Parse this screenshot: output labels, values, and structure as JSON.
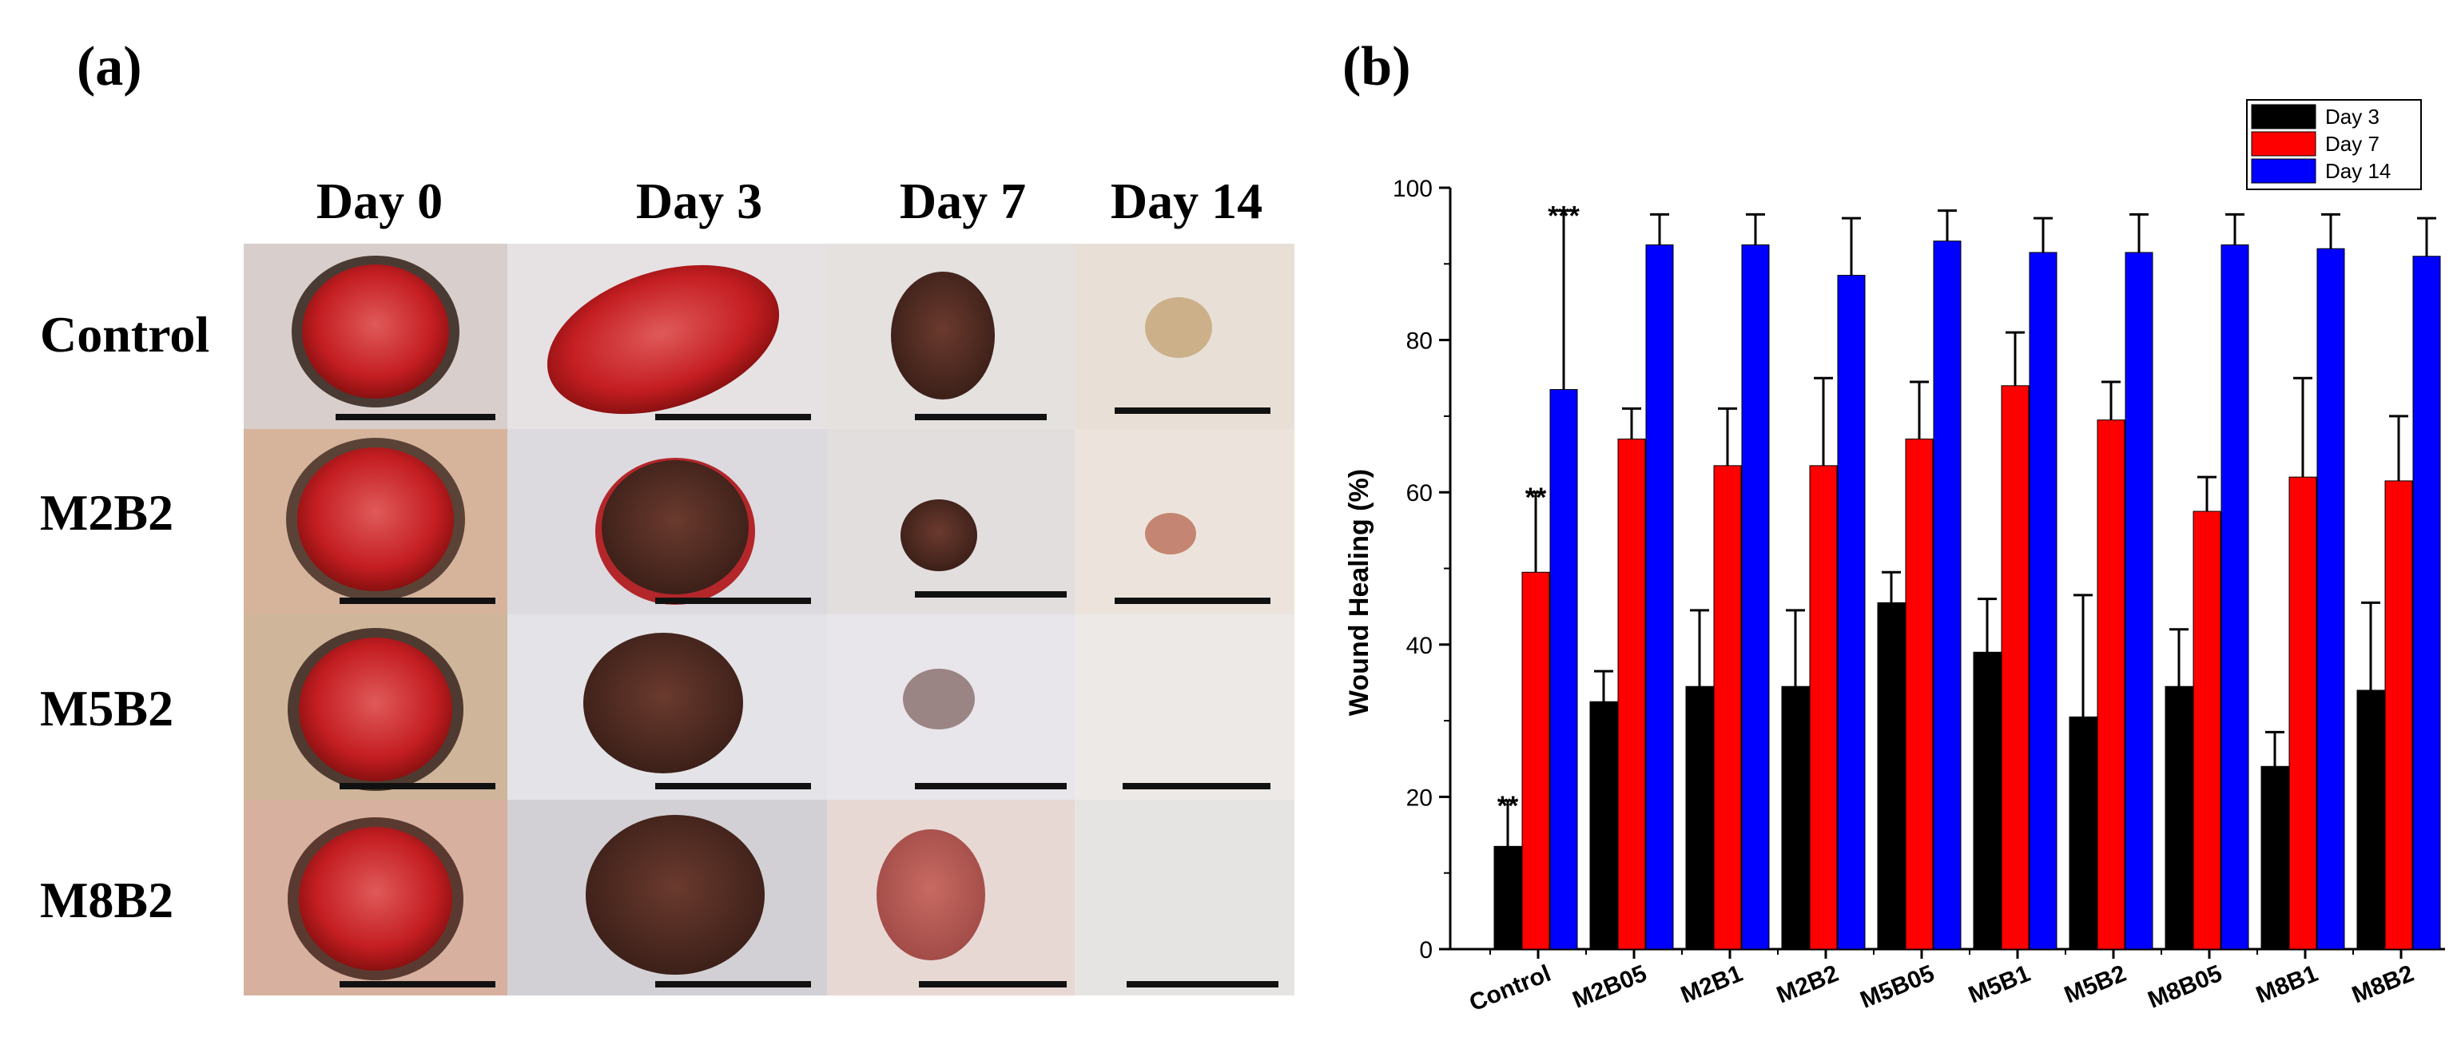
{
  "panel_a": {
    "label": "(a)",
    "columns": [
      "Day 0",
      "Day 3",
      "Day 7",
      "Day 14"
    ],
    "rows": [
      "Control",
      "M2B2",
      "M5B2",
      "M8B2"
    ]
  },
  "panel_b": {
    "label": "(b)"
  },
  "colors": {
    "day3": "#000000",
    "day7": "#ff0000",
    "day14": "#0000ff"
  },
  "chart_data": {
    "type": "bar",
    "title": "",
    "xlabel": "",
    "ylabel": "Wound Healing (%)",
    "ylim": [
      0,
      100
    ],
    "yticks": [
      0,
      20,
      40,
      60,
      80,
      100
    ],
    "legend_position": "top-right",
    "categories": [
      "Control",
      "M2B05",
      "M2B1",
      "M2B2",
      "M5B05",
      "M5B1",
      "M5B2",
      "M8B05",
      "M8B1",
      "M8B2"
    ],
    "series": [
      {
        "name": "Day 3",
        "values": [
          13.5,
          32.5,
          34.5,
          34.5,
          45.5,
          39,
          30.5,
          34.5,
          24,
          34
        ],
        "errors": [
          6,
          4,
          10,
          10,
          4,
          7,
          16,
          7.5,
          4.5,
          11.5
        ]
      },
      {
        "name": "Day 7",
        "values": [
          49.5,
          67,
          63.5,
          63.5,
          67,
          74,
          69.5,
          57.5,
          62,
          61.5
        ],
        "errors": [
          10.5,
          4,
          7.5,
          11.5,
          7.5,
          7,
          5,
          4.5,
          13,
          8.5
        ]
      },
      {
        "name": "Day 14",
        "values": [
          73.5,
          92.5,
          92.5,
          88.5,
          93,
          91.5,
          91.5,
          92.5,
          92,
          91
        ],
        "errors": [
          23.5,
          4,
          4,
          7.5,
          4,
          4.5,
          5,
          4,
          4.5,
          5
        ]
      }
    ],
    "annotations": [
      {
        "text": "**",
        "category": "Control",
        "series": "Day 3"
      },
      {
        "text": "**",
        "category": "Control",
        "series": "Day 7"
      },
      {
        "text": "***",
        "category": "Control",
        "series": "Day 14"
      }
    ]
  }
}
